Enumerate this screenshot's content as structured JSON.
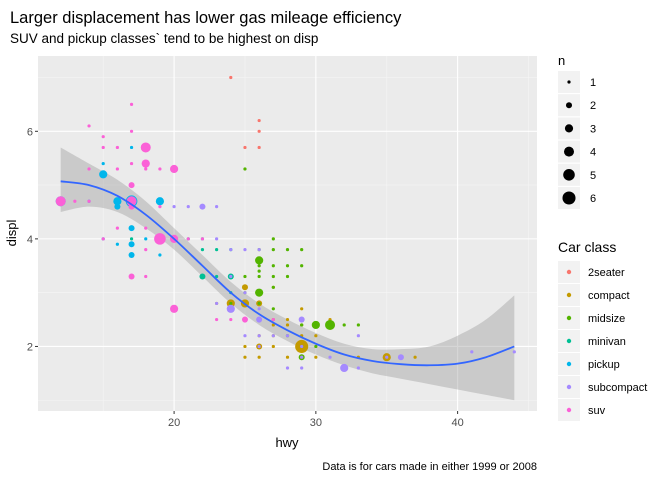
{
  "chart_data": {
    "type": "scatter",
    "title": "Larger displacement has lower gas mileage efficiency",
    "subtitle": "SUV and pickup classes` tend to be highest on disp",
    "caption": "Data is for cars made in either 1999 or 2008",
    "xlabel": "hwy",
    "ylabel": "displ",
    "xlim": [
      10.4,
      45.6
    ],
    "ylim": [
      0.8,
      7.4
    ],
    "x_ticks": [
      20,
      30,
      40
    ],
    "y_ticks": [
      2,
      4,
      6
    ],
    "grid": true,
    "legend_position": "right",
    "size_legend": {
      "title": "n",
      "values": [
        1,
        2,
        3,
        4,
        5,
        6
      ]
    },
    "color_legend": {
      "title": "Car class",
      "entries": [
        {
          "name": "2seater",
          "color": "#F8766D"
        },
        {
          "name": "compact",
          "color": "#C49A00"
        },
        {
          "name": "midsize",
          "color": "#53B400"
        },
        {
          "name": "minivan",
          "color": "#00C094"
        },
        {
          "name": "pickup",
          "color": "#00B6EB"
        },
        {
          "name": "subcompact",
          "color": "#A58AFF"
        },
        {
          "name": "suv",
          "color": "#FB61D7"
        }
      ]
    },
    "smooth_line": {
      "x": [
        12,
        14,
        16,
        18,
        20,
        22,
        24,
        26,
        28,
        30,
        32,
        34,
        36,
        38,
        40,
        42,
        44
      ],
      "y": [
        5.07,
        5.0,
        4.8,
        4.45,
        4.0,
        3.5,
        3.0,
        2.6,
        2.3,
        2.05,
        1.85,
        1.73,
        1.67,
        1.65,
        1.68,
        1.8,
        2.0
      ],
      "lower": [
        4.5,
        4.6,
        4.5,
        4.2,
        3.8,
        3.3,
        2.8,
        2.4,
        2.1,
        1.85,
        1.65,
        1.5,
        1.4,
        1.3,
        1.2,
        1.1,
        1.0
      ],
      "upper": [
        5.7,
        5.4,
        5.1,
        4.7,
        4.2,
        3.7,
        3.2,
        2.8,
        2.5,
        2.25,
        2.05,
        1.95,
        1.95,
        2.0,
        2.2,
        2.5,
        2.95
      ]
    },
    "series": [
      {
        "name": "2seater",
        "color": "#F8766D",
        "points": [
          {
            "x": 26,
            "y": 5.7,
            "n": 1
          },
          {
            "x": 26,
            "y": 6.2,
            "n": 1
          },
          {
            "x": 24,
            "y": 7.0,
            "n": 1
          },
          {
            "x": 25,
            "y": 5.7,
            "n": 1
          },
          {
            "x": 26,
            "y": 6.0,
            "n": 1
          }
        ]
      },
      {
        "name": "compact",
        "color": "#C49A00",
        "points": [
          {
            "x": 29,
            "y": 2.0,
            "n": 6
          },
          {
            "x": 26,
            "y": 2.0,
            "n": 2
          },
          {
            "x": 25,
            "y": 2.0,
            "n": 1
          },
          {
            "x": 27,
            "y": 2.0,
            "n": 1
          },
          {
            "x": 25,
            "y": 1.8,
            "n": 1
          },
          {
            "x": 26,
            "y": 1.8,
            "n": 1
          },
          {
            "x": 28,
            "y": 1.8,
            "n": 1
          },
          {
            "x": 29,
            "y": 1.8,
            "n": 1
          },
          {
            "x": 30,
            "y": 1.8,
            "n": 1
          },
          {
            "x": 33,
            "y": 1.8,
            "n": 1
          },
          {
            "x": 35,
            "y": 1.8,
            "n": 3
          },
          {
            "x": 37,
            "y": 1.8,
            "n": 1
          },
          {
            "x": 24,
            "y": 2.8,
            "n": 3
          },
          {
            "x": 25,
            "y": 2.8,
            "n": 3
          },
          {
            "x": 26,
            "y": 2.8,
            "n": 2
          },
          {
            "x": 23,
            "y": 2.8,
            "n": 1
          },
          {
            "x": 25,
            "y": 3.1,
            "n": 2
          },
          {
            "x": 27,
            "y": 3.1,
            "n": 1
          },
          {
            "x": 26,
            "y": 2.5,
            "n": 1
          },
          {
            "x": 27,
            "y": 2.5,
            "n": 1
          },
          {
            "x": 28,
            "y": 2.5,
            "n": 1
          },
          {
            "x": 29,
            "y": 2.5,
            "n": 1
          },
          {
            "x": 31,
            "y": 2.5,
            "n": 1
          },
          {
            "x": 26,
            "y": 2.2,
            "n": 1
          },
          {
            "x": 27,
            "y": 2.2,
            "n": 1
          },
          {
            "x": 29,
            "y": 2.2,
            "n": 1
          },
          {
            "x": 30,
            "y": 2.2,
            "n": 1
          },
          {
            "x": 28,
            "y": 2.4,
            "n": 1
          },
          {
            "x": 27,
            "y": 2.4,
            "n": 1
          },
          {
            "x": 29,
            "y": 2.4,
            "n": 1
          },
          {
            "x": 31,
            "y": 2.4,
            "n": 1
          },
          {
            "x": 29,
            "y": 2.7,
            "n": 1
          }
        ]
      },
      {
        "name": "midsize",
        "color": "#53B400",
        "points": [
          {
            "x": 31,
            "y": 2.4,
            "n": 4
          },
          {
            "x": 30,
            "y": 2.4,
            "n": 3
          },
          {
            "x": 29,
            "y": 2.4,
            "n": 1
          },
          {
            "x": 33,
            "y": 2.4,
            "n": 1
          },
          {
            "x": 26,
            "y": 3.6,
            "n": 3
          },
          {
            "x": 27,
            "y": 3.5,
            "n": 1
          },
          {
            "x": 26,
            "y": 3.5,
            "n": 1
          },
          {
            "x": 28,
            "y": 3.5,
            "n": 1
          },
          {
            "x": 29,
            "y": 3.5,
            "n": 1
          },
          {
            "x": 25,
            "y": 3.3,
            "n": 1
          },
          {
            "x": 26,
            "y": 3.3,
            "n": 1
          },
          {
            "x": 27,
            "y": 3.3,
            "n": 1
          },
          {
            "x": 28,
            "y": 3.3,
            "n": 1
          },
          {
            "x": 26,
            "y": 3.0,
            "n": 3
          },
          {
            "x": 25,
            "y": 3.0,
            "n": 1
          },
          {
            "x": 27,
            "y": 3.1,
            "n": 1
          },
          {
            "x": 29,
            "y": 1.8,
            "n": 2
          },
          {
            "x": 26,
            "y": 2.8,
            "n": 1
          },
          {
            "x": 24,
            "y": 2.8,
            "n": 1
          },
          {
            "x": 27,
            "y": 2.7,
            "n": 1
          },
          {
            "x": 25,
            "y": 5.3,
            "n": 1
          },
          {
            "x": 26,
            "y": 3.8,
            "n": 1
          },
          {
            "x": 27,
            "y": 3.8,
            "n": 1
          },
          {
            "x": 28,
            "y": 3.8,
            "n": 1
          },
          {
            "x": 29,
            "y": 3.8,
            "n": 1
          },
          {
            "x": 26,
            "y": 3.4,
            "n": 1
          },
          {
            "x": 29,
            "y": 2.0,
            "n": 1
          },
          {
            "x": 28,
            "y": 2.2,
            "n": 1
          },
          {
            "x": 30,
            "y": 2.0,
            "n": 1
          },
          {
            "x": 32,
            "y": 2.4,
            "n": 1
          },
          {
            "x": 27,
            "y": 4.0,
            "n": 1
          }
        ]
      },
      {
        "name": "minivan",
        "color": "#00C094",
        "points": [
          {
            "x": 22,
            "y": 3.3,
            "n": 2
          },
          {
            "x": 24,
            "y": 3.3,
            "n": 2
          },
          {
            "x": 22,
            "y": 3.8,
            "n": 1
          },
          {
            "x": 23,
            "y": 3.8,
            "n": 1
          },
          {
            "x": 24,
            "y": 3.8,
            "n": 1
          },
          {
            "x": 21,
            "y": 4.0,
            "n": 1
          },
          {
            "x": 17,
            "y": 4.0,
            "n": 1
          },
          {
            "x": 22,
            "y": 4.0,
            "n": 1
          },
          {
            "x": 23,
            "y": 3.3,
            "n": 1
          },
          {
            "x": 24,
            "y": 3.0,
            "n": 1
          }
        ]
      },
      {
        "name": "pickup",
        "color": "#00B6EB",
        "points": [
          {
            "x": 17,
            "y": 4.7,
            "n": 5
          },
          {
            "x": 12,
            "y": 4.7,
            "n": 4
          },
          {
            "x": 16,
            "y": 4.7,
            "n": 3
          },
          {
            "x": 19,
            "y": 4.7,
            "n": 3
          },
          {
            "x": 17,
            "y": 3.9,
            "n": 2
          },
          {
            "x": 17,
            "y": 4.2,
            "n": 2
          },
          {
            "x": 15,
            "y": 5.2,
            "n": 3
          },
          {
            "x": 16,
            "y": 4.6,
            "n": 2
          },
          {
            "x": 17,
            "y": 3.7,
            "n": 2
          },
          {
            "x": 19,
            "y": 3.7,
            "n": 1
          },
          {
            "x": 15,
            "y": 5.4,
            "n": 1
          },
          {
            "x": 17,
            "y": 5.7,
            "n": 1
          },
          {
            "x": 18,
            "y": 4.0,
            "n": 1
          },
          {
            "x": 20,
            "y": 4.0,
            "n": 1
          },
          {
            "x": 15,
            "y": 4.0,
            "n": 1
          },
          {
            "x": 16,
            "y": 3.9,
            "n": 1
          },
          {
            "x": 17,
            "y": 4.6,
            "n": 1
          },
          {
            "x": 14,
            "y": 4.7,
            "n": 1
          }
        ]
      },
      {
        "name": "subcompact",
        "color": "#A58AFF",
        "points": [
          {
            "x": 36,
            "y": 1.8,
            "n": 2
          },
          {
            "x": 35,
            "y": 1.8,
            "n": 1
          },
          {
            "x": 29,
            "y": 1.8,
            "n": 1
          },
          {
            "x": 32,
            "y": 1.6,
            "n": 3
          },
          {
            "x": 33,
            "y": 1.6,
            "n": 1
          },
          {
            "x": 29,
            "y": 1.6,
            "n": 1
          },
          {
            "x": 44,
            "y": 1.9,
            "n": 1
          },
          {
            "x": 41,
            "y": 1.9,
            "n": 1
          },
          {
            "x": 29,
            "y": 2.5,
            "n": 2
          },
          {
            "x": 26,
            "y": 2.5,
            "n": 2
          },
          {
            "x": 24,
            "y": 2.7,
            "n": 3
          },
          {
            "x": 26,
            "y": 2.7,
            "n": 1
          },
          {
            "x": 25,
            "y": 3.0,
            "n": 1
          },
          {
            "x": 26,
            "y": 2.2,
            "n": 1
          },
          {
            "x": 27,
            "y": 2.2,
            "n": 1
          },
          {
            "x": 28,
            "y": 2.2,
            "n": 1
          },
          {
            "x": 29,
            "y": 2.0,
            "n": 1
          },
          {
            "x": 22,
            "y": 4.6,
            "n": 2
          },
          {
            "x": 20,
            "y": 4.6,
            "n": 1
          },
          {
            "x": 23,
            "y": 4.0,
            "n": 1
          },
          {
            "x": 21,
            "y": 4.6,
            "n": 1
          },
          {
            "x": 23,
            "y": 4.6,
            "n": 1
          },
          {
            "x": 25,
            "y": 3.8,
            "n": 1
          },
          {
            "x": 26,
            "y": 3.8,
            "n": 1
          },
          {
            "x": 24,
            "y": 3.8,
            "n": 1
          },
          {
            "x": 24,
            "y": 3.3,
            "n": 1
          },
          {
            "x": 23,
            "y": 2.8,
            "n": 1
          },
          {
            "x": 26,
            "y": 2.0,
            "n": 1
          },
          {
            "x": 25,
            "y": 2.2,
            "n": 1
          },
          {
            "x": 31,
            "y": 1.8,
            "n": 1
          },
          {
            "x": 33,
            "y": 2.2,
            "n": 1
          },
          {
            "x": 28,
            "y": 1.6,
            "n": 1
          }
        ]
      },
      {
        "name": "suv",
        "color": "#FB61D7",
        "points": [
          {
            "x": 17,
            "y": 4.7,
            "n": 4
          },
          {
            "x": 12,
            "y": 4.7,
            "n": 4
          },
          {
            "x": 18,
            "y": 5.7,
            "n": 4
          },
          {
            "x": 20,
            "y": 5.3,
            "n": 3
          },
          {
            "x": 17,
            "y": 5.0,
            "n": 2
          },
          {
            "x": 19,
            "y": 4.0,
            "n": 5
          },
          {
            "x": 20,
            "y": 4.0,
            "n": 3
          },
          {
            "x": 17,
            "y": 4.6,
            "n": 2
          },
          {
            "x": 18,
            "y": 5.4,
            "n": 3
          },
          {
            "x": 17,
            "y": 3.3,
            "n": 2
          },
          {
            "x": 20,
            "y": 2.7,
            "n": 3
          },
          {
            "x": 17,
            "y": 6.5,
            "n": 1
          },
          {
            "x": 14,
            "y": 6.1,
            "n": 1
          },
          {
            "x": 15,
            "y": 5.9,
            "n": 1
          },
          {
            "x": 15,
            "y": 5.7,
            "n": 1
          },
          {
            "x": 16,
            "y": 5.7,
            "n": 1
          },
          {
            "x": 17,
            "y": 6.0,
            "n": 1
          },
          {
            "x": 17,
            "y": 5.4,
            "n": 1
          },
          {
            "x": 18,
            "y": 5.3,
            "n": 1
          },
          {
            "x": 19,
            "y": 5.3,
            "n": 1
          },
          {
            "x": 14,
            "y": 5.3,
            "n": 1
          },
          {
            "x": 16,
            "y": 5.3,
            "n": 1
          },
          {
            "x": 15,
            "y": 4.0,
            "n": 1
          },
          {
            "x": 16,
            "y": 4.2,
            "n": 1
          },
          {
            "x": 18,
            "y": 4.2,
            "n": 1
          },
          {
            "x": 18,
            "y": 3.8,
            "n": 1
          },
          {
            "x": 18,
            "y": 3.3,
            "n": 1
          },
          {
            "x": 19,
            "y": 4.6,
            "n": 1
          },
          {
            "x": 22,
            "y": 4.0,
            "n": 1
          },
          {
            "x": 21,
            "y": 4.0,
            "n": 1
          },
          {
            "x": 24,
            "y": 2.5,
            "n": 1
          },
          {
            "x": 25,
            "y": 2.5,
            "n": 2
          },
          {
            "x": 27,
            "y": 2.5,
            "n": 1
          },
          {
            "x": 23,
            "y": 2.5,
            "n": 1
          },
          {
            "x": 14,
            "y": 4.7,
            "n": 1
          },
          {
            "x": 13,
            "y": 4.7,
            "n": 1
          }
        ]
      }
    ]
  }
}
